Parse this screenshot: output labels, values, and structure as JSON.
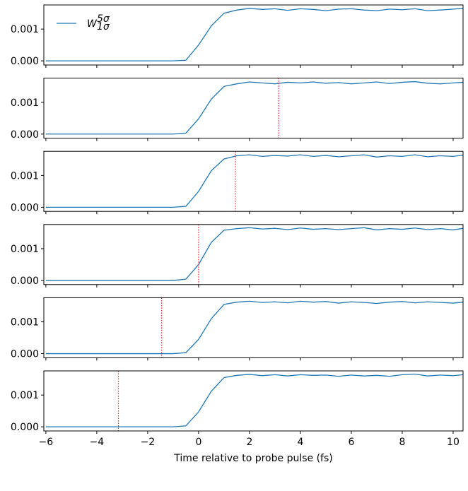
{
  "chart_data": [
    {
      "type": "line",
      "x": [
        -6,
        -5.5,
        -5,
        -4.5,
        -4,
        -3.5,
        -3,
        -2.5,
        -2,
        -1.5,
        -1,
        -0.5,
        0,
        0.5,
        1,
        1.5,
        2,
        2.5,
        3,
        3.5,
        4,
        4.5,
        5,
        5.5,
        6,
        6.5,
        7,
        7.5,
        8,
        8.5,
        9,
        9.5,
        10,
        10.39
      ],
      "series": [
        {
          "name": "W",
          "superscript": "5σ",
          "subscript": "1σ",
          "color": "#1f77b4",
          "values": [
            0,
            0,
            0,
            0,
            0,
            0,
            0,
            0,
            0,
            0,
            0,
            2e-05,
            0.0005,
            0.0011,
            0.0015,
            0.0016,
            0.00165,
            0.00162,
            0.00164,
            0.00159,
            0.00164,
            0.00162,
            0.00158,
            0.00163,
            0.00164,
            0.0016,
            0.00158,
            0.00163,
            0.00161,
            0.00164,
            0.00158,
            0.0016,
            0.00163,
            0.00165
          ]
        }
      ],
      "xlim": [
        -6.08,
        10.39
      ],
      "ylim": [
        -0.00013,
        0.00176
      ],
      "xticks": [
        -6,
        -4,
        -2,
        0,
        2,
        4,
        6,
        8,
        10
      ],
      "yticks": [
        {
          "value": 0,
          "label": "0.000"
        },
        {
          "value": 0.001,
          "label": "0.001"
        }
      ],
      "legend": "upper left",
      "xtick_labels": false
    },
    {
      "type": "line",
      "x": [
        -6,
        -5.5,
        -5,
        -4.5,
        -4,
        -3.5,
        -3,
        -2.5,
        -2,
        -1.5,
        -1,
        -0.5,
        0,
        0.5,
        1,
        1.5,
        2,
        2.5,
        3,
        3.5,
        4,
        4.5,
        5,
        5.5,
        6,
        6.5,
        7,
        7.5,
        8,
        8.5,
        9,
        9.5,
        10,
        10.39
      ],
      "series": [
        {
          "color": "#1f77b4",
          "values": [
            0,
            0,
            0,
            0,
            0,
            0,
            0,
            0,
            0,
            0,
            0,
            3e-05,
            0.00048,
            0.0011,
            0.0015,
            0.00158,
            0.00164,
            0.00161,
            0.00158,
            0.00163,
            0.00161,
            0.00164,
            0.0016,
            0.00162,
            0.00158,
            0.00161,
            0.00164,
            0.00159,
            0.00163,
            0.00165,
            0.0016,
            0.00158,
            0.00161,
            0.00163
          ]
        }
      ],
      "vline": {
        "x": 3.15,
        "color": "#d62728"
      },
      "xlim": [
        -6.08,
        10.39
      ],
      "ylim": [
        -0.00013,
        0.00176
      ],
      "xticks": [
        -6,
        -4,
        -2,
        0,
        2,
        4,
        6,
        8,
        10
      ],
      "yticks": [
        {
          "value": 0,
          "label": "0.000"
        },
        {
          "value": 0.001,
          "label": "0.001"
        }
      ],
      "xtick_labels": false
    },
    {
      "type": "line",
      "x": [
        -6,
        -5.5,
        -5,
        -4.5,
        -4,
        -3.5,
        -3,
        -2.5,
        -2,
        -1.5,
        -1,
        -0.5,
        0,
        0.5,
        1,
        1.5,
        2,
        2.5,
        3,
        3.5,
        4,
        4.5,
        5,
        5.5,
        6,
        6.5,
        7,
        7.5,
        8,
        8.5,
        9,
        9.5,
        10,
        10.39
      ],
      "series": [
        {
          "color": "#1f77b4",
          "values": [
            0,
            0,
            0,
            0,
            0,
            0,
            0,
            0,
            0,
            0,
            0,
            3e-05,
            0.0005,
            0.00115,
            0.00152,
            0.00162,
            0.00165,
            0.0016,
            0.00163,
            0.00161,
            0.00165,
            0.0016,
            0.00163,
            0.00159,
            0.00162,
            0.00165,
            0.00158,
            0.00162,
            0.0016,
            0.00165,
            0.00159,
            0.00162,
            0.0016,
            0.00164
          ]
        }
      ],
      "vline": {
        "x": 1.45,
        "color": "#d62728"
      },
      "xlim": [
        -6.08,
        10.39
      ],
      "ylim": [
        -0.00013,
        0.00176
      ],
      "xticks": [
        -6,
        -4,
        -2,
        0,
        2,
        4,
        6,
        8,
        10
      ],
      "yticks": [
        {
          "value": 0,
          "label": "0.000"
        },
        {
          "value": 0.001,
          "label": "0.001"
        }
      ],
      "xtick_labels": false
    },
    {
      "type": "line",
      "x": [
        -6,
        -5.5,
        -5,
        -4.5,
        -4,
        -3.5,
        -3,
        -2.5,
        -2,
        -1.5,
        -1,
        -0.5,
        0,
        0.5,
        1,
        1.5,
        2,
        2.5,
        3,
        3.5,
        4,
        4.5,
        5,
        5.5,
        6,
        6.5,
        7,
        7.5,
        8,
        8.5,
        9,
        9.5,
        10,
        10.39
      ],
      "series": [
        {
          "color": "#1f77b4",
          "values": [
            0,
            0,
            0,
            0,
            0,
            0,
            0,
            0,
            0,
            0,
            0,
            4e-05,
            0.0005,
            0.0012,
            0.00158,
            0.00163,
            0.00166,
            0.00162,
            0.00164,
            0.0016,
            0.00165,
            0.00161,
            0.00163,
            0.0016,
            0.00163,
            0.00166,
            0.00159,
            0.00163,
            0.00161,
            0.00165,
            0.0016,
            0.00163,
            0.00159,
            0.00164
          ]
        }
      ],
      "vline": {
        "x": 0,
        "color": "#d62728"
      },
      "xlim": [
        -6.08,
        10.39
      ],
      "ylim": [
        -0.00013,
        0.00176
      ],
      "xticks": [
        -6,
        -4,
        -2,
        0,
        2,
        4,
        6,
        8,
        10
      ],
      "yticks": [
        {
          "value": 0,
          "label": "0.000"
        },
        {
          "value": 0.001,
          "label": "0.001"
        }
      ],
      "xtick_labels": false
    },
    {
      "type": "line",
      "x": [
        -6,
        -5.5,
        -5,
        -4.5,
        -4,
        -3.5,
        -3,
        -2.5,
        -2,
        -1.5,
        -1,
        -0.5,
        0,
        0.5,
        1,
        1.5,
        2,
        2.5,
        3,
        3.5,
        4,
        4.5,
        5,
        5.5,
        6,
        6.5,
        7,
        7.5,
        8,
        8.5,
        9,
        9.5,
        10,
        10.39
      ],
      "series": [
        {
          "color": "#1f77b4",
          "values": [
            0,
            0,
            0,
            0,
            0,
            0,
            0,
            0,
            0,
            0,
            0,
            3e-05,
            0.00045,
            0.0011,
            0.00155,
            0.00162,
            0.00165,
            0.00161,
            0.00163,
            0.0016,
            0.00165,
            0.00162,
            0.00164,
            0.00159,
            0.00163,
            0.00161,
            0.00158,
            0.00162,
            0.00164,
            0.0016,
            0.00163,
            0.00161,
            0.00159,
            0.00162
          ]
        }
      ],
      "vline": {
        "x": -1.45,
        "color": "#d62728"
      },
      "xlim": [
        -6.08,
        10.39
      ],
      "ylim": [
        -0.00013,
        0.00176
      ],
      "xticks": [
        -6,
        -4,
        -2,
        0,
        2,
        4,
        6,
        8,
        10
      ],
      "yticks": [
        {
          "value": 0,
          "label": "0.000"
        },
        {
          "value": 0.001,
          "label": "0.001"
        }
      ],
      "xtick_labels": false
    },
    {
      "type": "line",
      "x": [
        -6,
        -5.5,
        -5,
        -4.5,
        -4,
        -3.5,
        -3,
        -2.5,
        -2,
        -1.5,
        -1,
        -0.5,
        0,
        0.5,
        1,
        1.5,
        2,
        2.5,
        3,
        3.5,
        4,
        4.5,
        5,
        5.5,
        6,
        6.5,
        7,
        7.5,
        8,
        8.5,
        9,
        9.5,
        10,
        10.39
      ],
      "series": [
        {
          "color": "#1f77b4",
          "values": [
            0,
            0,
            0,
            0,
            0,
            0,
            0,
            0,
            0,
            0,
            0,
            3e-05,
            0.00047,
            0.00112,
            0.00155,
            0.00162,
            0.00165,
            0.00161,
            0.00164,
            0.0016,
            0.00164,
            0.00162,
            0.00163,
            0.00159,
            0.00163,
            0.0016,
            0.00162,
            0.00159,
            0.00164,
            0.00166,
            0.0016,
            0.00163,
            0.00161,
            0.00164
          ]
        }
      ],
      "vline": {
        "x": -3.15,
        "color": "#d62728"
      },
      "xlim": [
        -6.08,
        10.39
      ],
      "ylim": [
        -0.00013,
        0.00176
      ],
      "xticks": [
        {
          "value": -6,
          "label": "−6"
        },
        {
          "value": -4,
          "label": "−4"
        },
        {
          "value": -2,
          "label": "−2"
        },
        0,
        2,
        4,
        6,
        8,
        10
      ],
      "yticks": [
        {
          "value": 0,
          "label": "0.000"
        },
        {
          "value": 0.001,
          "label": "0.001"
        }
      ],
      "xtick_labels": true,
      "xlabel": "Time relative to probe pulse (fs)"
    }
  ]
}
